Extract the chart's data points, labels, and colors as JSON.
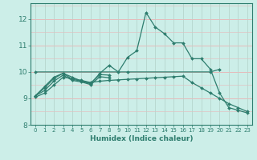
{
  "xlabel": "Humidex (Indice chaleur)",
  "bg_color": "#cceee8",
  "grid_color_h": "#e8b8b8",
  "grid_color_v": "#b8d8d0",
  "line_color": "#2e7d6e",
  "xlim": [
    -0.5,
    23.5
  ],
  "ylim": [
    8,
    12.6
  ],
  "yticks": [
    8,
    9,
    10,
    11,
    12
  ],
  "xticks": [
    0,
    1,
    2,
    3,
    4,
    5,
    6,
    7,
    8,
    9,
    10,
    11,
    12,
    13,
    14,
    15,
    16,
    17,
    18,
    19,
    20,
    21,
    22,
    23
  ],
  "series": [
    {
      "x": [
        0,
        1,
        2,
        3,
        4,
        5,
        6,
        7,
        8,
        9,
        10,
        11,
        12,
        13,
        14,
        15,
        16,
        17,
        18,
        19,
        20,
        21,
        22,
        23
      ],
      "y": [
        9.1,
        9.45,
        9.8,
        9.95,
        9.8,
        9.65,
        9.55,
        9.95,
        10.25,
        10.0,
        10.55,
        10.8,
        12.25,
        11.7,
        11.45,
        11.1,
        11.1,
        10.5,
        10.5,
        10.1,
        9.2,
        8.65,
        8.55,
        8.45
      ]
    },
    {
      "x": [
        0,
        10,
        19,
        20
      ],
      "y": [
        10.0,
        10.0,
        10.0,
        10.1
      ]
    },
    {
      "x": [
        0,
        1,
        2,
        3,
        4,
        5,
        6,
        7,
        8,
        9,
        10,
        11,
        12,
        13,
        14,
        15,
        16,
        17,
        18,
        19,
        20,
        21,
        22,
        23
      ],
      "y": [
        9.05,
        9.2,
        9.5,
        9.8,
        9.75,
        9.68,
        9.6,
        9.65,
        9.68,
        9.7,
        9.72,
        9.74,
        9.76,
        9.78,
        9.8,
        9.82,
        9.84,
        9.6,
        9.4,
        9.2,
        9.0,
        8.8,
        8.65,
        8.5
      ]
    },
    {
      "x": [
        0,
        1,
        2,
        3,
        4,
        5,
        6,
        7,
        8
      ],
      "y": [
        9.1,
        9.4,
        9.75,
        9.95,
        9.72,
        9.65,
        9.58,
        9.9,
        9.88
      ]
    },
    {
      "x": [
        0,
        1,
        2,
        3,
        4,
        5,
        6,
        7,
        8
      ],
      "y": [
        9.1,
        9.3,
        9.65,
        9.88,
        9.68,
        9.62,
        9.52,
        9.82,
        9.78
      ]
    }
  ]
}
